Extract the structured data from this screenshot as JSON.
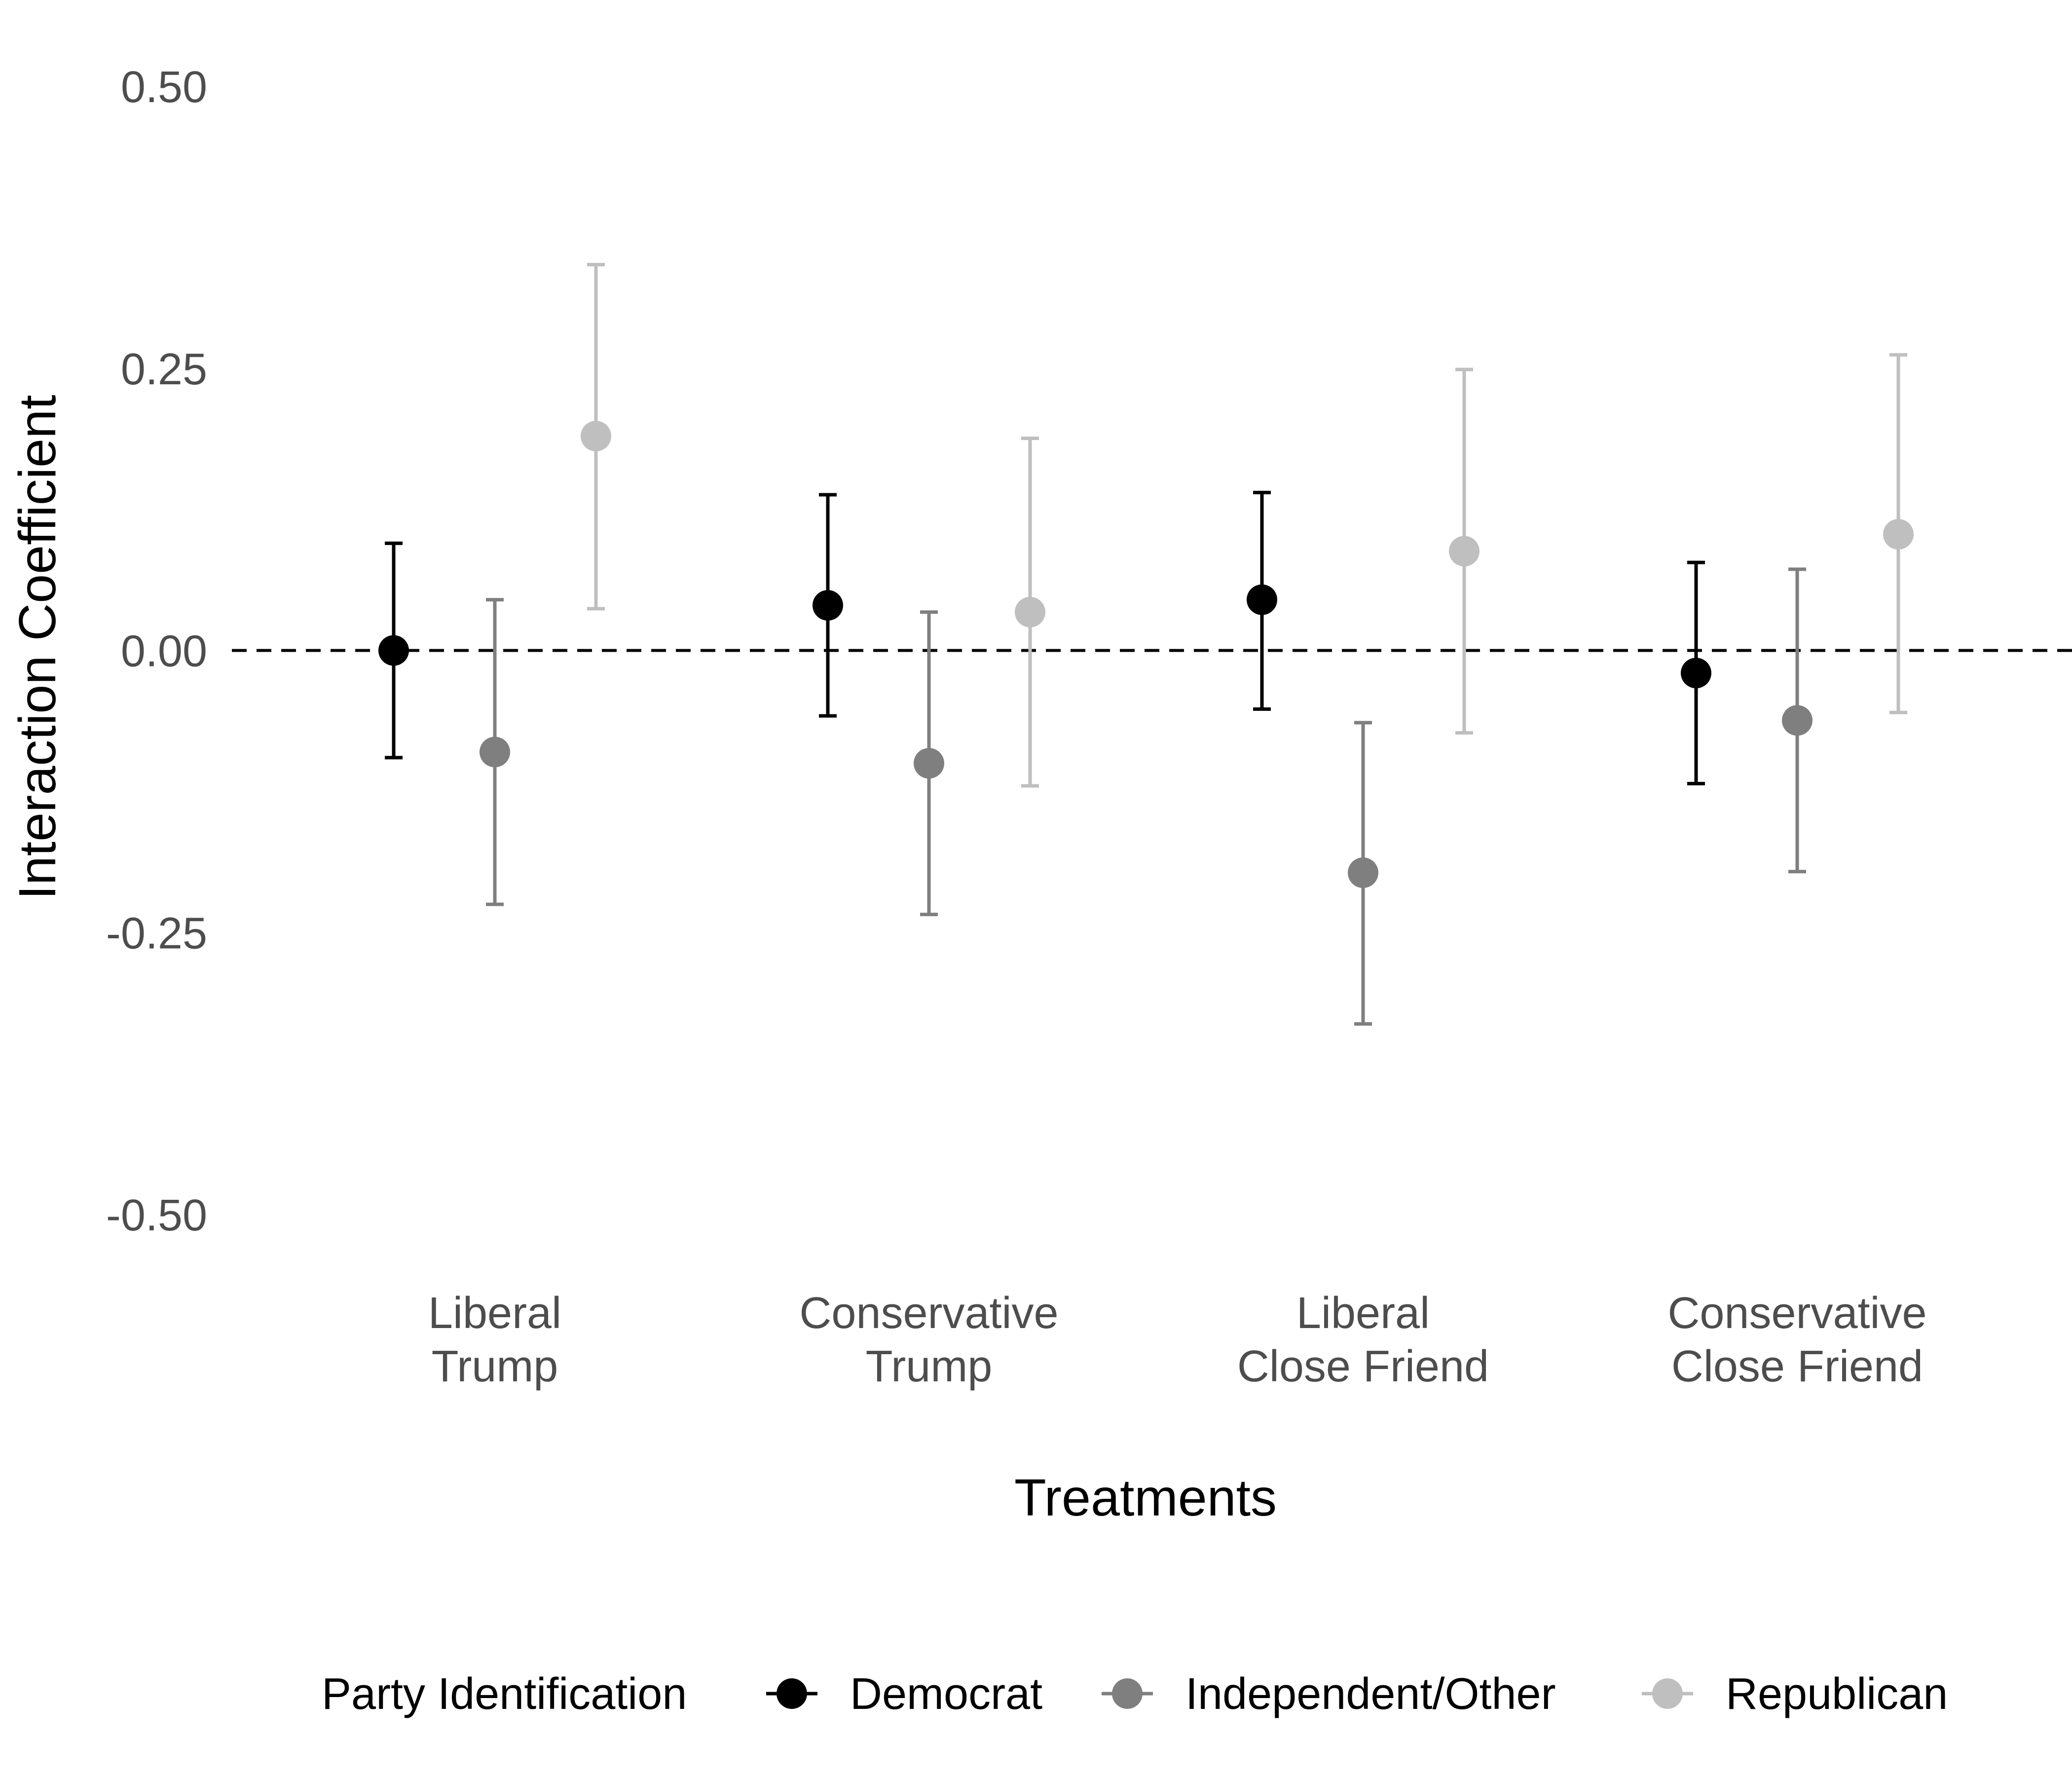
{
  "chart_data": {
    "type": "scatter",
    "subtype": "point-range",
    "title": "",
    "xlabel": "Treatments",
    "ylabel": "Interaction Coefficient",
    "ylim": [
      -0.5,
      0.5
    ],
    "yticks": [
      "0.50",
      "0.25",
      "0.00",
      "-0.25",
      "-0.50"
    ],
    "ytick_values": [
      0.5,
      0.25,
      0.0,
      -0.25,
      -0.5
    ],
    "reference_line": {
      "y": 0.0,
      "style": "dashed",
      "color": "#000000"
    },
    "grid": false,
    "categories": [
      [
        "Liberal",
        "Trump"
      ],
      [
        "Conservative",
        "Trump"
      ],
      [
        "Liberal",
        "Close Friend"
      ],
      [
        "Conservative",
        "Close Friend"
      ]
    ],
    "legend": {
      "title": "Party Identification",
      "position": "bottom"
    },
    "series": [
      {
        "name": "Democrat",
        "color": "#000000",
        "values": [
          0.0,
          0.04,
          0.045,
          -0.02
        ],
        "lower": [
          -0.095,
          -0.058,
          -0.052,
          -0.118
        ],
        "upper": [
          0.095,
          0.138,
          0.14,
          0.078
        ]
      },
      {
        "name": "Independent/Other",
        "color": "#7f7f7f",
        "values": [
          -0.09,
          -0.1,
          -0.197,
          -0.062
        ],
        "lower": [
          -0.225,
          -0.234,
          -0.331,
          -0.196
        ],
        "upper": [
          0.045,
          0.034,
          -0.064,
          0.072
        ]
      },
      {
        "name": "Republican",
        "color": "#bfbfbf",
        "values": [
          0.19,
          0.034,
          0.088,
          0.103
        ],
        "lower": [
          0.037,
          -0.12,
          -0.073,
          -0.055
        ],
        "upper": [
          0.342,
          0.188,
          0.249,
          0.262
        ]
      }
    ]
  }
}
